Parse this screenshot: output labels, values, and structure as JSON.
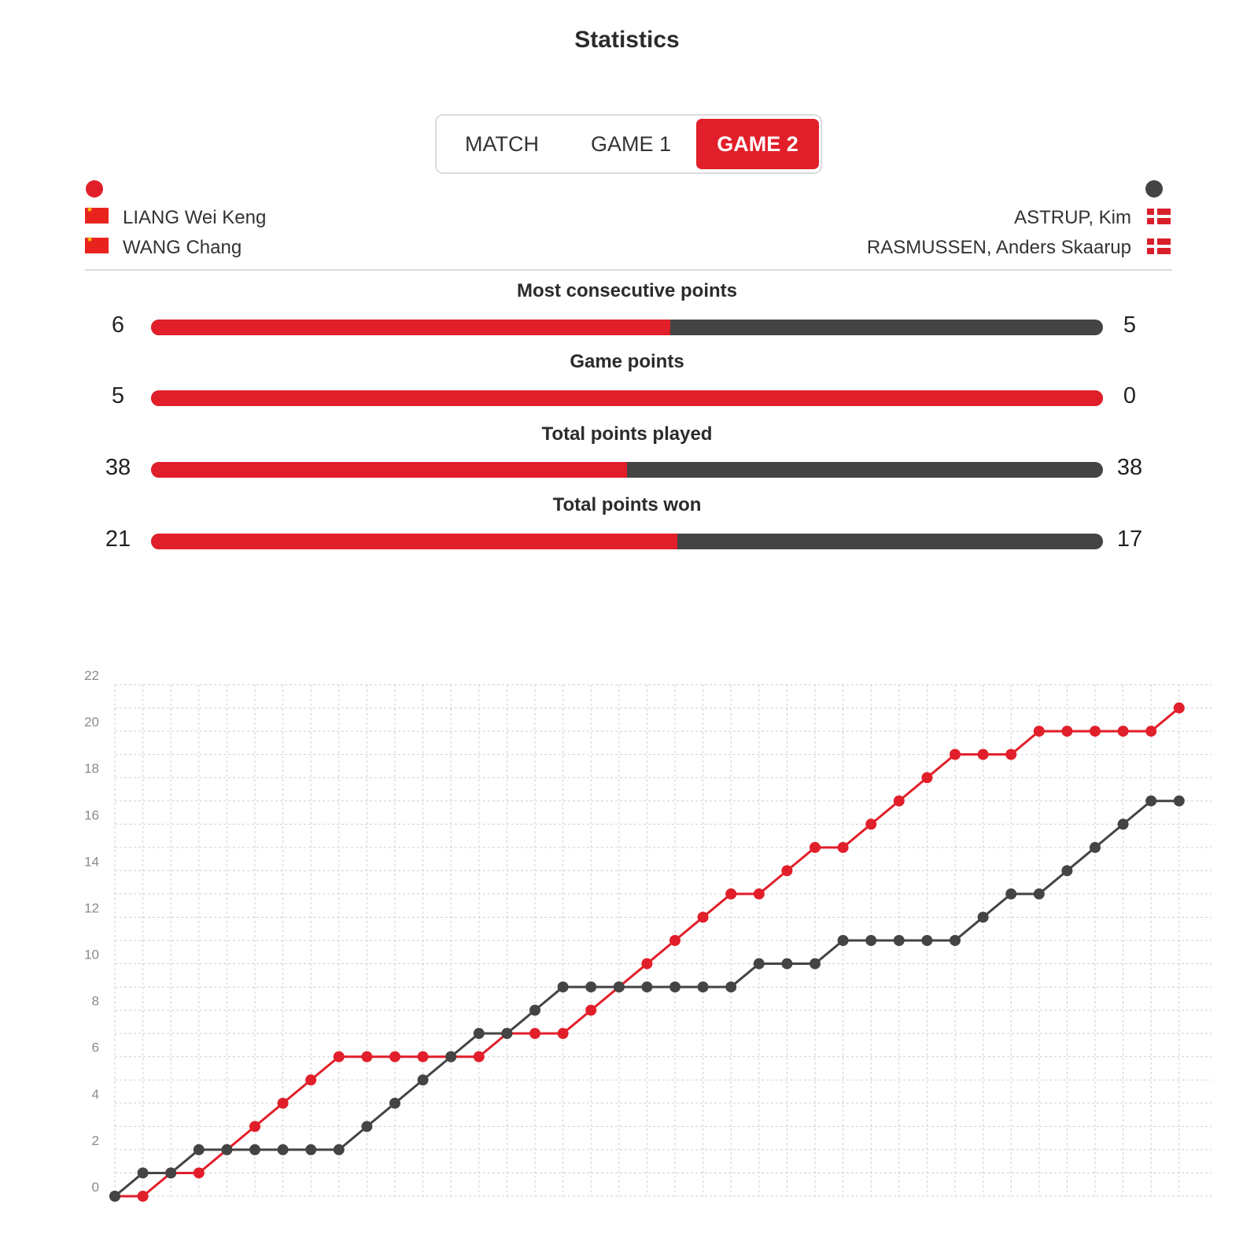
{
  "title": "Statistics",
  "tabs": [
    {
      "label": "MATCH",
      "active": false
    },
    {
      "label": "GAME 1",
      "active": false
    },
    {
      "label": "GAME 2",
      "active": true
    }
  ],
  "colors": {
    "team_left": "#e11f2a",
    "team_right": "#444444",
    "accent": "#e11f2a"
  },
  "team_left": {
    "players": [
      {
        "name": "LIANG Wei Keng",
        "flag": "china-flag-icon"
      },
      {
        "name": "WANG Chang",
        "flag": "china-flag-icon"
      }
    ]
  },
  "team_right": {
    "players": [
      {
        "name": "ASTRUP, Kim",
        "flag": "denmark-flag-icon"
      },
      {
        "name": "RASMUSSEN, Anders Skaarup",
        "flag": "denmark-flag-icon"
      }
    ]
  },
  "stats": [
    {
      "label": "Most consecutive points",
      "left": "6",
      "right": "5"
    },
    {
      "label": "Game points",
      "left": "5",
      "right": "0"
    },
    {
      "label": "Total points played",
      "left": "38",
      "right": "38"
    },
    {
      "label": "Total points won",
      "left": "21",
      "right": "17"
    }
  ],
  "chart_data": {
    "type": "line",
    "y_ticks": [
      "0",
      "2",
      "4",
      "6",
      "8",
      "10",
      "12",
      "14",
      "16",
      "18",
      "20",
      "22"
    ],
    "ylim": [
      0,
      22
    ],
    "x": [
      0,
      1,
      2,
      3,
      4,
      5,
      6,
      7,
      8,
      9,
      10,
      11,
      12,
      13,
      14,
      15,
      16,
      17,
      18,
      19,
      20,
      21,
      22,
      23,
      24,
      25,
      26,
      27,
      28,
      29,
      30,
      31,
      32,
      33,
      34,
      35,
      36,
      37,
      38
    ],
    "grid": true,
    "series": [
      {
        "color": "#e11f2a",
        "values": [
          0,
          0,
          1,
          1,
          2,
          3,
          4,
          5,
          6,
          6,
          6,
          6,
          6,
          6,
          7,
          7,
          7,
          8,
          9,
          10,
          11,
          12,
          13,
          13,
          14,
          15,
          15,
          16,
          17,
          18,
          19,
          19,
          19,
          20,
          20,
          20,
          20,
          20,
          21
        ]
      },
      {
        "color": "#444444",
        "values": [
          0,
          1,
          1,
          2,
          2,
          2,
          2,
          2,
          2,
          3,
          4,
          5,
          6,
          7,
          7,
          8,
          9,
          9,
          9,
          9,
          9,
          9,
          9,
          10,
          10,
          10,
          11,
          11,
          11,
          11,
          11,
          12,
          13,
          13,
          14,
          15,
          16,
          17,
          17
        ]
      }
    ]
  }
}
